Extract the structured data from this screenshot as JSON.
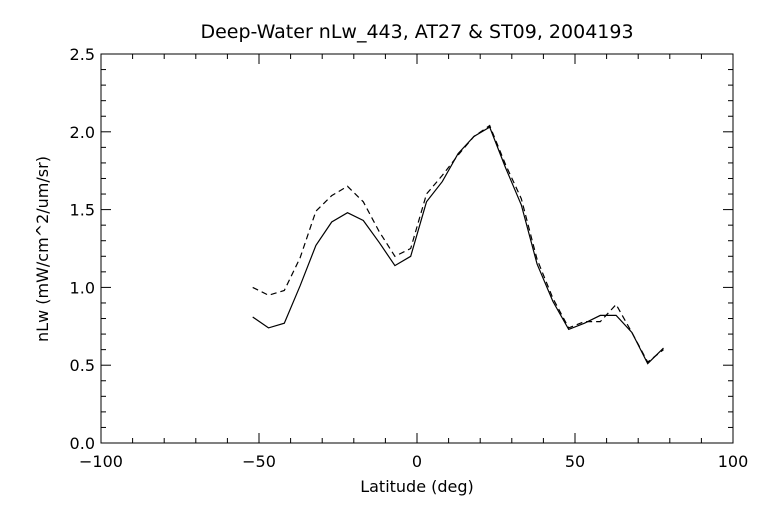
{
  "chart_data": {
    "type": "line",
    "title": "Deep-Water nLw_443, AT27 & ST09, 2004193",
    "xlabel": "Latitude (deg)",
    "ylabel": "nLw (mW/cm^2/um/sr)",
    "xlim": [
      -100,
      100
    ],
    "ylim": [
      0.0,
      2.5
    ],
    "x_ticks": [
      -100,
      -50,
      0,
      50,
      100
    ],
    "x_tick_labels": [
      "−100",
      "−50",
      "0",
      "50",
      "100"
    ],
    "y_ticks": [
      0.0,
      0.5,
      1.0,
      1.5,
      2.0,
      2.5
    ],
    "y_tick_labels": [
      "0.0",
      "0.5",
      "1.0",
      "1.5",
      "2.0",
      "2.5"
    ],
    "grid": false,
    "series": [
      {
        "style": "solid",
        "x": [
          -52,
          -47,
          -42,
          -37,
          -32,
          -27,
          -22,
          -17,
          -12,
          -7,
          -2,
          3,
          8,
          13,
          18,
          23,
          28,
          33,
          38,
          43,
          48,
          53,
          58,
          63,
          68,
          73,
          78
        ],
        "y": [
          0.81,
          0.74,
          0.77,
          1.01,
          1.27,
          1.42,
          1.48,
          1.43,
          1.29,
          1.14,
          1.2,
          1.55,
          1.68,
          1.86,
          1.97,
          2.03,
          1.77,
          1.53,
          1.15,
          0.91,
          0.73,
          0.77,
          0.82,
          0.82,
          0.71,
          0.51,
          0.61
        ]
      },
      {
        "style": "dashed",
        "x": [
          -52,
          -47,
          -42,
          -37,
          -32,
          -27,
          -22,
          -17,
          -12,
          -7,
          -2,
          3,
          8,
          13,
          18,
          23,
          28,
          33,
          38,
          43,
          48,
          53,
          58,
          63,
          68,
          73,
          78
        ],
        "y": [
          1.0,
          0.95,
          0.98,
          1.19,
          1.49,
          1.59,
          1.65,
          1.55,
          1.36,
          1.2,
          1.25,
          1.6,
          1.72,
          1.85,
          1.97,
          2.04,
          1.79,
          1.57,
          1.18,
          0.93,
          0.74,
          0.78,
          0.78,
          0.89,
          0.71,
          0.52,
          0.6
        ]
      }
    ]
  }
}
